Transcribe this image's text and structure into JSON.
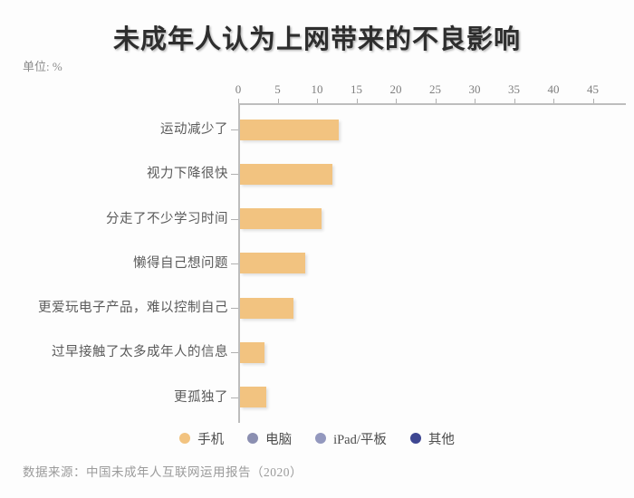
{
  "title": "未成年人认为上网带来的不良影响",
  "unit_label": "单位: %",
  "source": "数据来源：中国未成年人互联网运用报告（2020）",
  "colors": {
    "bar": "#F2C380",
    "axis": "#BDBDBD",
    "legend_phone": "#F2C380",
    "legend_computer": "#8B8FB1",
    "legend_ipad": "#9398BE",
    "legend_other": "#3E4792"
  },
  "legend": [
    {
      "label": "手机",
      "color": "#F2C380"
    },
    {
      "label": "电脑",
      "color": "#8B8FB1"
    },
    {
      "label": "iPad/平板",
      "color": "#9398BE"
    },
    {
      "label": "其他",
      "color": "#3E4792"
    }
  ],
  "chart_data": {
    "type": "bar",
    "orientation": "horizontal",
    "title": "未成年人认为上网带来的不良影响",
    "unit": "%",
    "xlabel": "",
    "ylabel": "",
    "xlim": [
      0,
      45
    ],
    "xticks": [
      0,
      5,
      10,
      15,
      20,
      25,
      30,
      35,
      40,
      45
    ],
    "grid": false,
    "legend_position": "bottom",
    "categories": [
      "运动减少了",
      "视力下降很快",
      "分走了不少学习时间",
      "懒得自己想问题",
      "更爱玩电子产品，难以控制自己",
      "过早接触了太多成年人的信息",
      "更孤独了"
    ],
    "series": [
      {
        "name": "手机",
        "color": "#F2C380",
        "values": [
          12.6,
          11.8,
          10.4,
          8.3,
          6.8,
          3.2,
          3.4
        ]
      }
    ]
  }
}
